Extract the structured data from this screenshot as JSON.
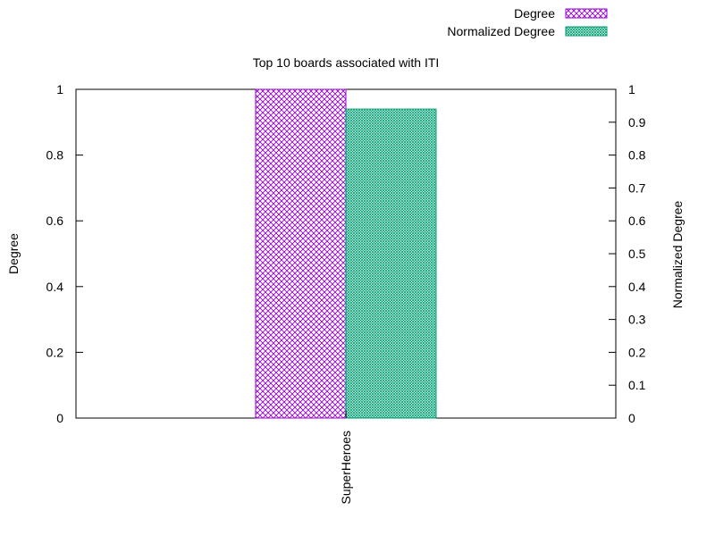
{
  "chart_data": {
    "type": "bar",
    "title": "Top 10 boards associated with ITI",
    "categories": [
      "SuperHeroes"
    ],
    "series": [
      {
        "name": "Degree",
        "axis": "left",
        "values": [
          1.0
        ],
        "color": "#9400d3",
        "pattern": "crosshatch"
      },
      {
        "name": "Normalized Degree",
        "axis": "right",
        "values": [
          0.94
        ],
        "color": "#009e73",
        "pattern": "fine-checker"
      }
    ],
    "ylabel": "Degree",
    "y2label": "Normalized Degree",
    "ylim": [
      0,
      1
    ],
    "y2lim": [
      0,
      1
    ],
    "yticks": [
      "0",
      "0.2",
      "0.4",
      "0.6",
      "0.8",
      "1"
    ],
    "y2ticks": [
      "0",
      "0.1",
      "0.2",
      "0.3",
      "0.4",
      "0.5",
      "0.6",
      "0.7",
      "0.8",
      "0.9",
      "1"
    ],
    "xtick_rotation": "vertical",
    "legend_position": "top-right",
    "grid": false
  }
}
